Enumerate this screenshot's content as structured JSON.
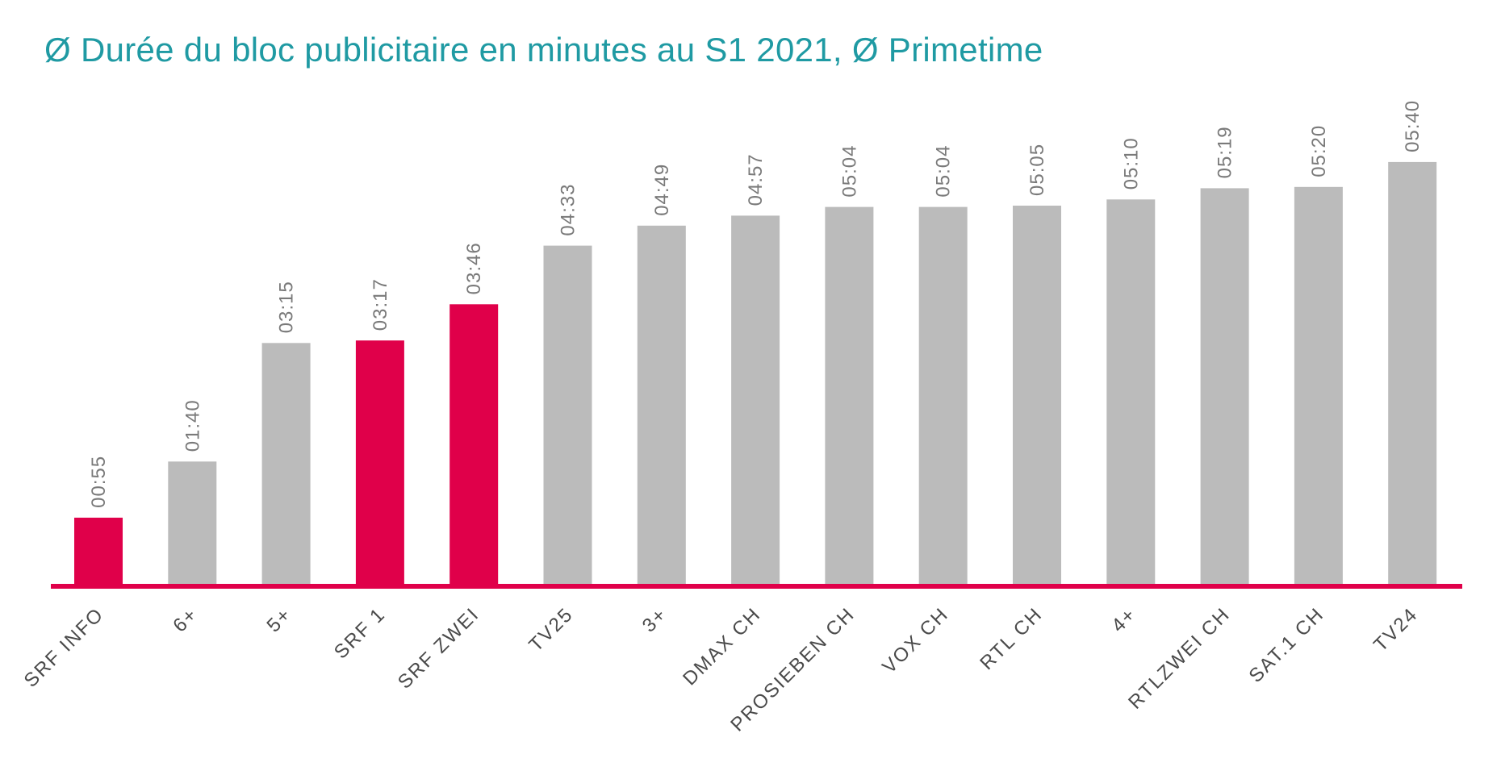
{
  "colors": {
    "title": "#1f9aa3",
    "highlight": "#e0004a",
    "default_bar": "#bbbbbb",
    "axis_line": "#e0004a",
    "value_label": "#7a7a7a",
    "category_label": "#4a4a4a"
  },
  "chart_data": {
    "type": "bar",
    "title": "Ø Durée du bloc publicitaire en minutes au S1 2021, Ø Primetime",
    "xlabel": "",
    "ylabel": "",
    "grid": false,
    "legend": "none",
    "value_unit": "seconds",
    "ylim": [
      0,
      340
    ],
    "categories": [
      "SRF INFO",
      "6+",
      "5+",
      "SRF 1",
      "SRF ZWEI",
      "TV25",
      "3+",
      "DMAX CH",
      "PROSIEBEN CH",
      "VOX CH",
      "RTL CH",
      "4+",
      "RTLZWEI CH",
      "SAT.1 CH",
      "TV24"
    ],
    "values": [
      55,
      100,
      195,
      197,
      226,
      273,
      289,
      297,
      304,
      304,
      305,
      310,
      319,
      320,
      340
    ],
    "value_labels": [
      "00:55",
      "01:40",
      "03:15",
      "03:17",
      "03:46",
      "04:33",
      "04:49",
      "04:57",
      "05:04",
      "05:04",
      "05:05",
      "05:10",
      "05:19",
      "05:20",
      "05:40"
    ],
    "highlighted": [
      "SRF INFO",
      "SRF 1",
      "SRF ZWEI"
    ]
  }
}
